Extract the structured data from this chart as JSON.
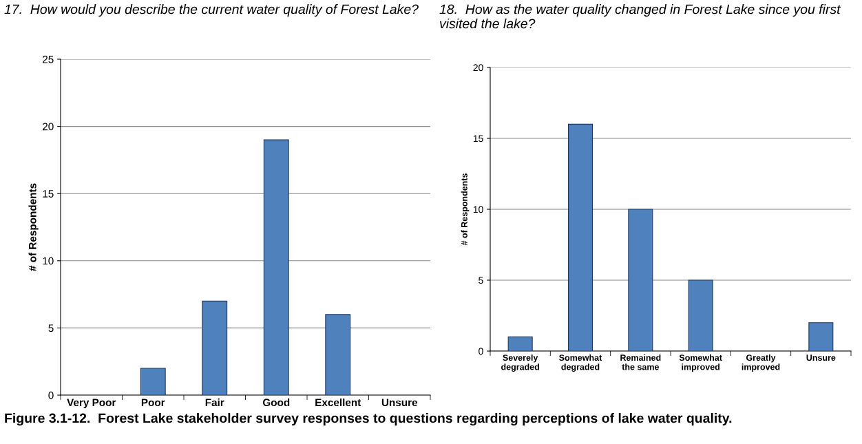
{
  "chart_data": [
    {
      "type": "bar",
      "title": "17.  How would you describe the current water quality of Forest Lake?",
      "ylabel": "# of Respondents",
      "categories": [
        "Very Poor",
        "Poor",
        "Fair",
        "Good",
        "Excellent",
        "Unsure"
      ],
      "values": [
        0,
        2,
        7,
        19,
        6,
        0
      ],
      "color": "#4f81bd",
      "ylim": [
        0,
        25
      ],
      "yticks": [
        0,
        5,
        10,
        15,
        20,
        25
      ],
      "grid": "y",
      "legend": false,
      "annotations": [
        "Figure 3.1-12.  Forest Lake stakeholder survey responses to questions regarding perceptions of lake water quality."
      ]
    },
    {
      "type": "bar",
      "title": "18.  How as the water quality changed in Forest Lake since you first visited the lake?",
      "ylabel": "# of Respondents",
      "categories": [
        "Severely\ndegraded",
        "Somewhat\ndegraded",
        "Remained\nthe same",
        "Somewhat\nimproved",
        "Greatly\nimproved",
        "Unsure"
      ],
      "values": [
        1,
        16,
        10,
        5,
        0,
        2
      ],
      "color": "#4f81bd",
      "ylim": [
        0,
        20
      ],
      "yticks": [
        0,
        5,
        10,
        15,
        20
      ],
      "grid": "y",
      "legend": false
    }
  ]
}
